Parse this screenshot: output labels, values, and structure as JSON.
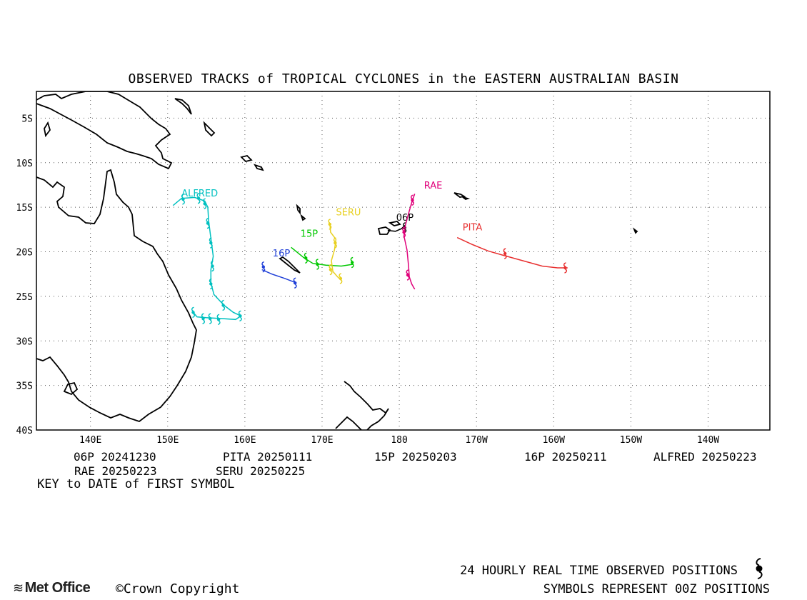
{
  "title": "OBSERVED TRACKS of TROPICAL CYCLONES in the EASTERN AUSTRALIAN BASIN",
  "map": {
    "lon_range": [
      133,
      228
    ],
    "lat_range": [
      -40,
      -2
    ],
    "lon_ticks": [
      {
        "value": 140,
        "label": "140E"
      },
      {
        "value": 150,
        "label": "150E"
      },
      {
        "value": 160,
        "label": "160E"
      },
      {
        "value": 170,
        "label": "170E"
      },
      {
        "value": 180,
        "label": "180"
      },
      {
        "value": 190,
        "label": "170W"
      },
      {
        "value": 200,
        "label": "160W"
      },
      {
        "value": 210,
        "label": "150W"
      },
      {
        "value": 220,
        "label": "140W"
      }
    ],
    "lat_ticks": [
      {
        "value": -5,
        "label": "5S"
      },
      {
        "value": -10,
        "label": "10S"
      },
      {
        "value": -15,
        "label": "15S"
      },
      {
        "value": -20,
        "label": "20S"
      },
      {
        "value": -25,
        "label": "25S"
      },
      {
        "value": -30,
        "label": "30S"
      },
      {
        "value": -35,
        "label": "35S"
      },
      {
        "value": -40,
        "label": "40S"
      }
    ],
    "grid": "dotted"
  },
  "tracks": [
    {
      "name": "ALFRED",
      "color": "#00c0c0",
      "label_at": [
        151.8,
        -13.8
      ],
      "points": [
        [
          150.7,
          -14.8
        ],
        [
          151.8,
          -14.0
        ],
        [
          153.5,
          -13.9
        ],
        [
          154.8,
          -14.3
        ],
        [
          155.2,
          -15.0
        ],
        [
          155.3,
          -16.5
        ],
        [
          155.6,
          -18.5
        ],
        [
          155.9,
          -20.5
        ],
        [
          155.6,
          -22.0
        ],
        [
          155.6,
          -23.5
        ],
        [
          156.0,
          -24.8
        ],
        [
          157.3,
          -26.0
        ],
        [
          158.5,
          -26.8
        ],
        [
          159.5,
          -27.2
        ],
        [
          158.8,
          -27.6
        ],
        [
          157.2,
          -27.5
        ],
        [
          155.0,
          -27.4
        ],
        [
          153.8,
          -27.3
        ],
        [
          153.3,
          -26.8
        ]
      ],
      "symbols": [
        [
          152.0,
          -14.1
        ],
        [
          154.0,
          -14.0
        ],
        [
          154.8,
          -14.6
        ],
        [
          155.2,
          -16.8
        ],
        [
          155.6,
          -19.0
        ],
        [
          155.8,
          -21.6
        ],
        [
          155.6,
          -23.6
        ],
        [
          157.2,
          -26.0
        ],
        [
          159.4,
          -27.2
        ],
        [
          156.6,
          -27.6
        ],
        [
          155.5,
          -27.5
        ],
        [
          154.6,
          -27.5
        ],
        [
          153.3,
          -26.8
        ]
      ]
    },
    {
      "name": "16P",
      "color": "#2040d8",
      "label_at": [
        163.6,
        -20.5
      ],
      "points": [
        [
          162.2,
          -22.0
        ],
        [
          163.5,
          -22.5
        ],
        [
          165.2,
          -23.0
        ],
        [
          166.7,
          -23.5
        ]
      ],
      "symbols": [
        [
          162.4,
          -21.7
        ],
        [
          166.5,
          -23.5
        ]
      ]
    },
    {
      "name": "15P",
      "color": "#00c800",
      "label_at": [
        167.2,
        -18.3
      ],
      "points": [
        [
          166.0,
          -19.5
        ],
        [
          167.7,
          -20.7
        ],
        [
          168.8,
          -21.3
        ],
        [
          170.5,
          -21.5
        ],
        [
          172.5,
          -21.6
        ],
        [
          174.0,
          -21.4
        ]
      ],
      "symbols": [
        [
          167.9,
          -20.7
        ],
        [
          169.4,
          -21.4
        ],
        [
          173.9,
          -21.2
        ]
      ]
    },
    {
      "name": "SERU",
      "color": "#e8d020",
      "label_at": [
        171.8,
        -15.9
      ],
      "points": [
        [
          171.0,
          -16.8
        ],
        [
          171.1,
          -17.8
        ],
        [
          171.8,
          -18.6
        ],
        [
          171.6,
          -19.8
        ],
        [
          171.2,
          -21.0
        ],
        [
          171.4,
          -22.2
        ],
        [
          172.0,
          -22.8
        ],
        [
          172.5,
          -23.2
        ]
      ],
      "symbols": [
        [
          171.0,
          -16.9
        ],
        [
          171.7,
          -19.0
        ],
        [
          171.1,
          -22.0
        ],
        [
          172.4,
          -23.0
        ]
      ]
    },
    {
      "name": "06P",
      "color": "#000000",
      "label_at": [
        179.6,
        -16.5
      ],
      "points": [
        [
          178.5,
          -17.6
        ],
        [
          179.5,
          -17.7
        ],
        [
          180.3,
          -17.4
        ],
        [
          180.8,
          -17.0
        ]
      ],
      "symbols": [
        [
          180.7,
          -17.3
        ]
      ]
    },
    {
      "name": "RAE",
      "color": "#e0007a",
      "label_at": [
        183.2,
        -12.9
      ],
      "points": [
        [
          182.0,
          -13.5
        ],
        [
          181.6,
          -14.5
        ],
        [
          181.2,
          -15.7
        ],
        [
          180.8,
          -17.0
        ],
        [
          180.6,
          -18.2
        ],
        [
          181.0,
          -19.8
        ],
        [
          181.2,
          -21.6
        ],
        [
          181.3,
          -22.8
        ],
        [
          181.6,
          -23.6
        ],
        [
          182.0,
          -24.2
        ]
      ],
      "symbols": [
        [
          181.7,
          -14.2
        ],
        [
          180.6,
          -17.8
        ],
        [
          181.1,
          -22.6
        ]
      ]
    },
    {
      "name": "PITA",
      "color": "#e83030",
      "label_at": [
        188.2,
        -17.6
      ],
      "points": [
        [
          187.5,
          -18.4
        ],
        [
          189.5,
          -19.2
        ],
        [
          191.5,
          -19.9
        ],
        [
          193.5,
          -20.4
        ],
        [
          196.0,
          -21.0
        ],
        [
          198.5,
          -21.6
        ],
        [
          200.5,
          -21.8
        ],
        [
          201.8,
          -21.8
        ]
      ],
      "symbols": [
        [
          193.7,
          -20.2
        ],
        [
          201.5,
          -21.8
        ]
      ]
    }
  ],
  "key": [
    {
      "text": "06P 20241230"
    },
    {
      "text": "PITA 20250111"
    },
    {
      "text": "15P 20250203"
    },
    {
      "text": "16P 20250211"
    },
    {
      "text": "ALFRED 20250223"
    },
    {
      "text": "RAE 20250223"
    },
    {
      "text": "SERU 20250225"
    }
  ],
  "key_label": "KEY to DATE of FIRST SYMBOL",
  "footer": {
    "line1": "24 HOURLY REAL TIME OBSERVED POSITIONS",
    "line2": "SYMBOLS REPRESENT 00Z POSITIONS",
    "logo_text": "Met Office",
    "copyright": "©Crown Copyright"
  },
  "colors": {
    "land_outline": "#000000",
    "grid": "#555555"
  }
}
